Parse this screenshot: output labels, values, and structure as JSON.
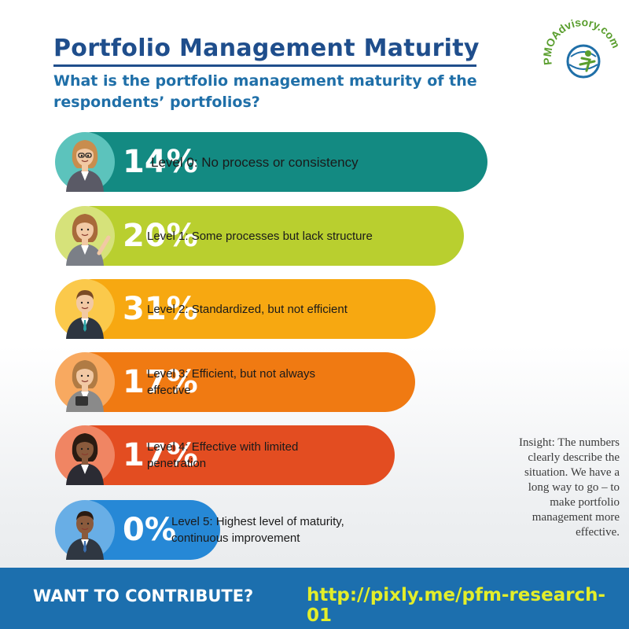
{
  "header": {
    "title": "Portfolio Management Maturity",
    "subtitle": "What is the portfolio management maturity of the respondents’ portfolios?"
  },
  "logo": {
    "text": "PMOAdvisory.com",
    "colors": {
      "green": "#5a9e2e",
      "blue": "#1f6fa8"
    }
  },
  "chart_data": {
    "type": "bar",
    "title": "Portfolio Management Maturity",
    "categories": [
      "Level 0: No process or consistency",
      "Level 1: Some processes but lack structure",
      "Level 2: Standardized, but not efficient",
      "Level 3: Efficient, but not always effective",
      "Level 4: Effective with limited penetration",
      "Level 5: Highest level of maturity, continuous improvement"
    ],
    "values": [
      14,
      20,
      31,
      17,
      17,
      0
    ],
    "labels": [
      "14%",
      "20%",
      "31%",
      "17%",
      "17%",
      "0%"
    ],
    "colors": [
      "#138a82",
      "#b9cf2f",
      "#f7a811",
      "#f07a12",
      "#e34d21",
      "#2688d6"
    ],
    "avatar_bg_colors": [
      "#5cc3bc",
      "#d6e27a",
      "#fbc94b",
      "#f8a960",
      "#f08563",
      "#68aee6"
    ],
    "avatars": [
      "woman-with-glasses-avatar",
      "woman-pointing-avatar",
      "man-in-suit-avatar",
      "woman-with-tablet-avatar",
      "businesswoman-arms-crossed-avatar",
      "man-in-dark-suit-avatar"
    ]
  },
  "insight": "Insight: The numbers clearly describe the situation. We have a long way to go – to make portfolio management more effective.",
  "footer": {
    "cta": "WANT TO CONTRIBUTE?",
    "link": "http://pixly.me/pfm-research-01"
  }
}
